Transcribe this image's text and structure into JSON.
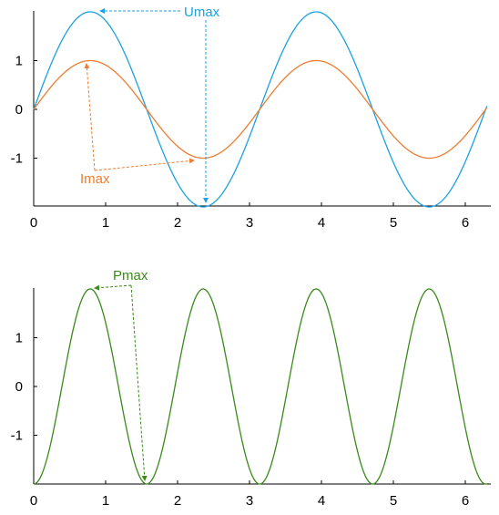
{
  "chart_data": [
    {
      "type": "line",
      "title": "",
      "xlabel": "",
      "ylabel": "",
      "xlim": [
        0,
        6.3
      ],
      "ylim": [
        -2,
        2
      ],
      "x_ticks": [
        "0",
        "1",
        "2",
        "3",
        "4",
        "5",
        "6"
      ],
      "y_ticks": [
        "1",
        "0",
        "-1"
      ],
      "series": [
        {
          "name": "",
          "color": "#1BA1E2",
          "function": "2*sin(2x)",
          "amplitude": 2,
          "angular_frequency": 2,
          "phase": 0,
          "offset": 0
        },
        {
          "name": "",
          "color": "#ED7D31",
          "function": "sin(2x)",
          "amplitude": 1,
          "angular_frequency": 2,
          "phase": 0,
          "offset": 0
        }
      ],
      "annotations": [
        {
          "text": "Umax",
          "color": "#1BA1E2",
          "points_to": [
            [
              0.785,
              2
            ],
            [
              2.356,
              -2
            ]
          ]
        },
        {
          "text": "Imax",
          "color": "#ED7D31",
          "points_to": [
            [
              0.785,
              1
            ],
            [
              2.356,
              -1
            ]
          ]
        }
      ],
      "grid": false,
      "legend": "none"
    },
    {
      "type": "line",
      "title": "",
      "xlabel": "",
      "ylabel": "",
      "xlim": [
        0,
        6.3
      ],
      "ylim": [
        -2,
        2
      ],
      "x_ticks": [
        "0",
        "1",
        "2",
        "3",
        "4",
        "5",
        "6"
      ],
      "y_ticks": [
        "1",
        "0",
        "-1"
      ],
      "series": [
        {
          "name": "",
          "color": "#3A8A1A",
          "function": "-2*cos(4x)",
          "amplitude": -2,
          "angular_frequency": 4,
          "phase": 0,
          "offset": 0,
          "shape": "cos"
        }
      ],
      "annotations": [
        {
          "text": "Pmax",
          "color": "#3A8A1A",
          "points_to": [
            [
              0.785,
              2
            ],
            [
              1.571,
              -2
            ]
          ]
        }
      ],
      "grid": false,
      "legend": "none"
    }
  ]
}
